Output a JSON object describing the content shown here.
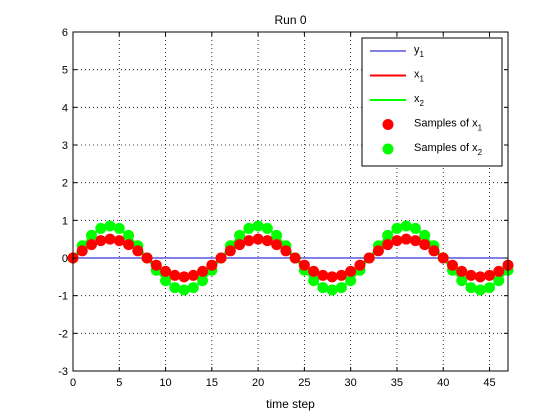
{
  "chart_data": {
    "type": "line",
    "title": "Run 0",
    "xlabel": "time step",
    "ylabel": "",
    "xlim": [
      0,
      47
    ],
    "ylim": [
      -3,
      6
    ],
    "xticks": [
      0,
      5,
      10,
      15,
      20,
      25,
      30,
      35,
      40,
      45
    ],
    "yticks": [
      -3,
      -2,
      -1,
      0,
      1,
      2,
      3,
      4,
      5,
      6
    ],
    "grid": true,
    "legend_position": "top-right",
    "x": [
      0,
      1,
      2,
      3,
      4,
      5,
      6,
      7,
      8,
      9,
      10,
      11,
      12,
      13,
      14,
      15,
      16,
      17,
      18,
      19,
      20,
      21,
      22,
      23,
      24,
      25,
      26,
      27,
      28,
      29,
      30,
      31,
      32,
      33,
      34,
      35,
      36,
      37,
      38,
      39,
      40,
      41,
      42,
      43,
      44,
      45,
      46,
      47
    ],
    "series": [
      {
        "name": "y_1",
        "legend_main": "y",
        "legend_sub": "1",
        "style": "line",
        "color": "#0000cc",
        "values": [
          0,
          0,
          0,
          0,
          0,
          0,
          0,
          0,
          0,
          0,
          0,
          0,
          0,
          0,
          0,
          0,
          0,
          0,
          0,
          0,
          0,
          0,
          0,
          0,
          0,
          0,
          0,
          0,
          0,
          0,
          0,
          0,
          0,
          0,
          0,
          0,
          0,
          0,
          0,
          0,
          0,
          0,
          0,
          0,
          0,
          0,
          0,
          0
        ]
      },
      {
        "name": "x_1",
        "legend_main": "x",
        "legend_sub": "1",
        "style": "line",
        "color": "#ff0000",
        "values": [
          0,
          0.191,
          0.354,
          0.462,
          0.5,
          0.462,
          0.354,
          0.191,
          0,
          -0.191,
          -0.354,
          -0.462,
          -0.5,
          -0.462,
          -0.354,
          -0.191,
          0,
          0.191,
          0.354,
          0.462,
          0.5,
          0.462,
          0.354,
          0.191,
          0,
          -0.191,
          -0.354,
          -0.462,
          -0.5,
          -0.462,
          -0.354,
          -0.191,
          0,
          0.191,
          0.354,
          0.462,
          0.5,
          0.462,
          0.354,
          0.191,
          0,
          -0.191,
          -0.354,
          -0.462,
          -0.5,
          -0.462,
          -0.354,
          -0.191
        ]
      },
      {
        "name": "x_2",
        "legend_main": "x",
        "legend_sub": "2",
        "style": "line",
        "color": "#00ff00",
        "values": [
          0,
          0.325,
          0.601,
          0.785,
          0.85,
          0.785,
          0.601,
          0.325,
          0,
          -0.325,
          -0.601,
          -0.785,
          -0.85,
          -0.785,
          -0.601,
          -0.325,
          0,
          0.325,
          0.601,
          0.785,
          0.85,
          0.785,
          0.601,
          0.325,
          0,
          -0.325,
          -0.601,
          -0.785,
          -0.85,
          -0.785,
          -0.601,
          -0.325,
          0,
          0.325,
          0.601,
          0.785,
          0.85,
          0.785,
          0.601,
          0.325,
          0,
          -0.325,
          -0.601,
          -0.785,
          -0.85,
          -0.785,
          -0.601,
          -0.325
        ]
      },
      {
        "name": "Samples of x_1",
        "legend_main": "Samples of x",
        "legend_sub": "1",
        "style": "markers",
        "color": "#ff0000",
        "values": [
          0,
          0.191,
          0.354,
          0.462,
          0.5,
          0.462,
          0.354,
          0.191,
          0,
          -0.191,
          -0.354,
          -0.462,
          -0.5,
          -0.462,
          -0.354,
          -0.191,
          0,
          0.191,
          0.354,
          0.462,
          0.5,
          0.462,
          0.354,
          0.191,
          0,
          -0.191,
          -0.354,
          -0.462,
          -0.5,
          -0.462,
          -0.354,
          -0.191,
          0,
          0.191,
          0.354,
          0.462,
          0.5,
          0.462,
          0.354,
          0.191,
          0,
          -0.191,
          -0.354,
          -0.462,
          -0.5,
          -0.462,
          -0.354,
          -0.191
        ]
      },
      {
        "name": "Samples of x_2",
        "legend_main": "Samples of x",
        "legend_sub": "2",
        "style": "markers",
        "color": "#00ff00",
        "values": [
          0,
          0.325,
          0.601,
          0.785,
          0.85,
          0.785,
          0.601,
          0.325,
          0,
          -0.325,
          -0.601,
          -0.785,
          -0.85,
          -0.785,
          -0.601,
          -0.325,
          0,
          0.325,
          0.601,
          0.785,
          0.85,
          0.785,
          0.601,
          0.325,
          0,
          -0.325,
          -0.601,
          -0.785,
          -0.85,
          -0.785,
          -0.601,
          -0.325,
          0,
          0.325,
          0.601,
          0.785,
          0.85,
          0.785,
          0.601,
          0.325,
          0,
          -0.325,
          -0.601,
          -0.785,
          -0.85,
          -0.785,
          -0.601,
          -0.325
        ]
      }
    ]
  }
}
